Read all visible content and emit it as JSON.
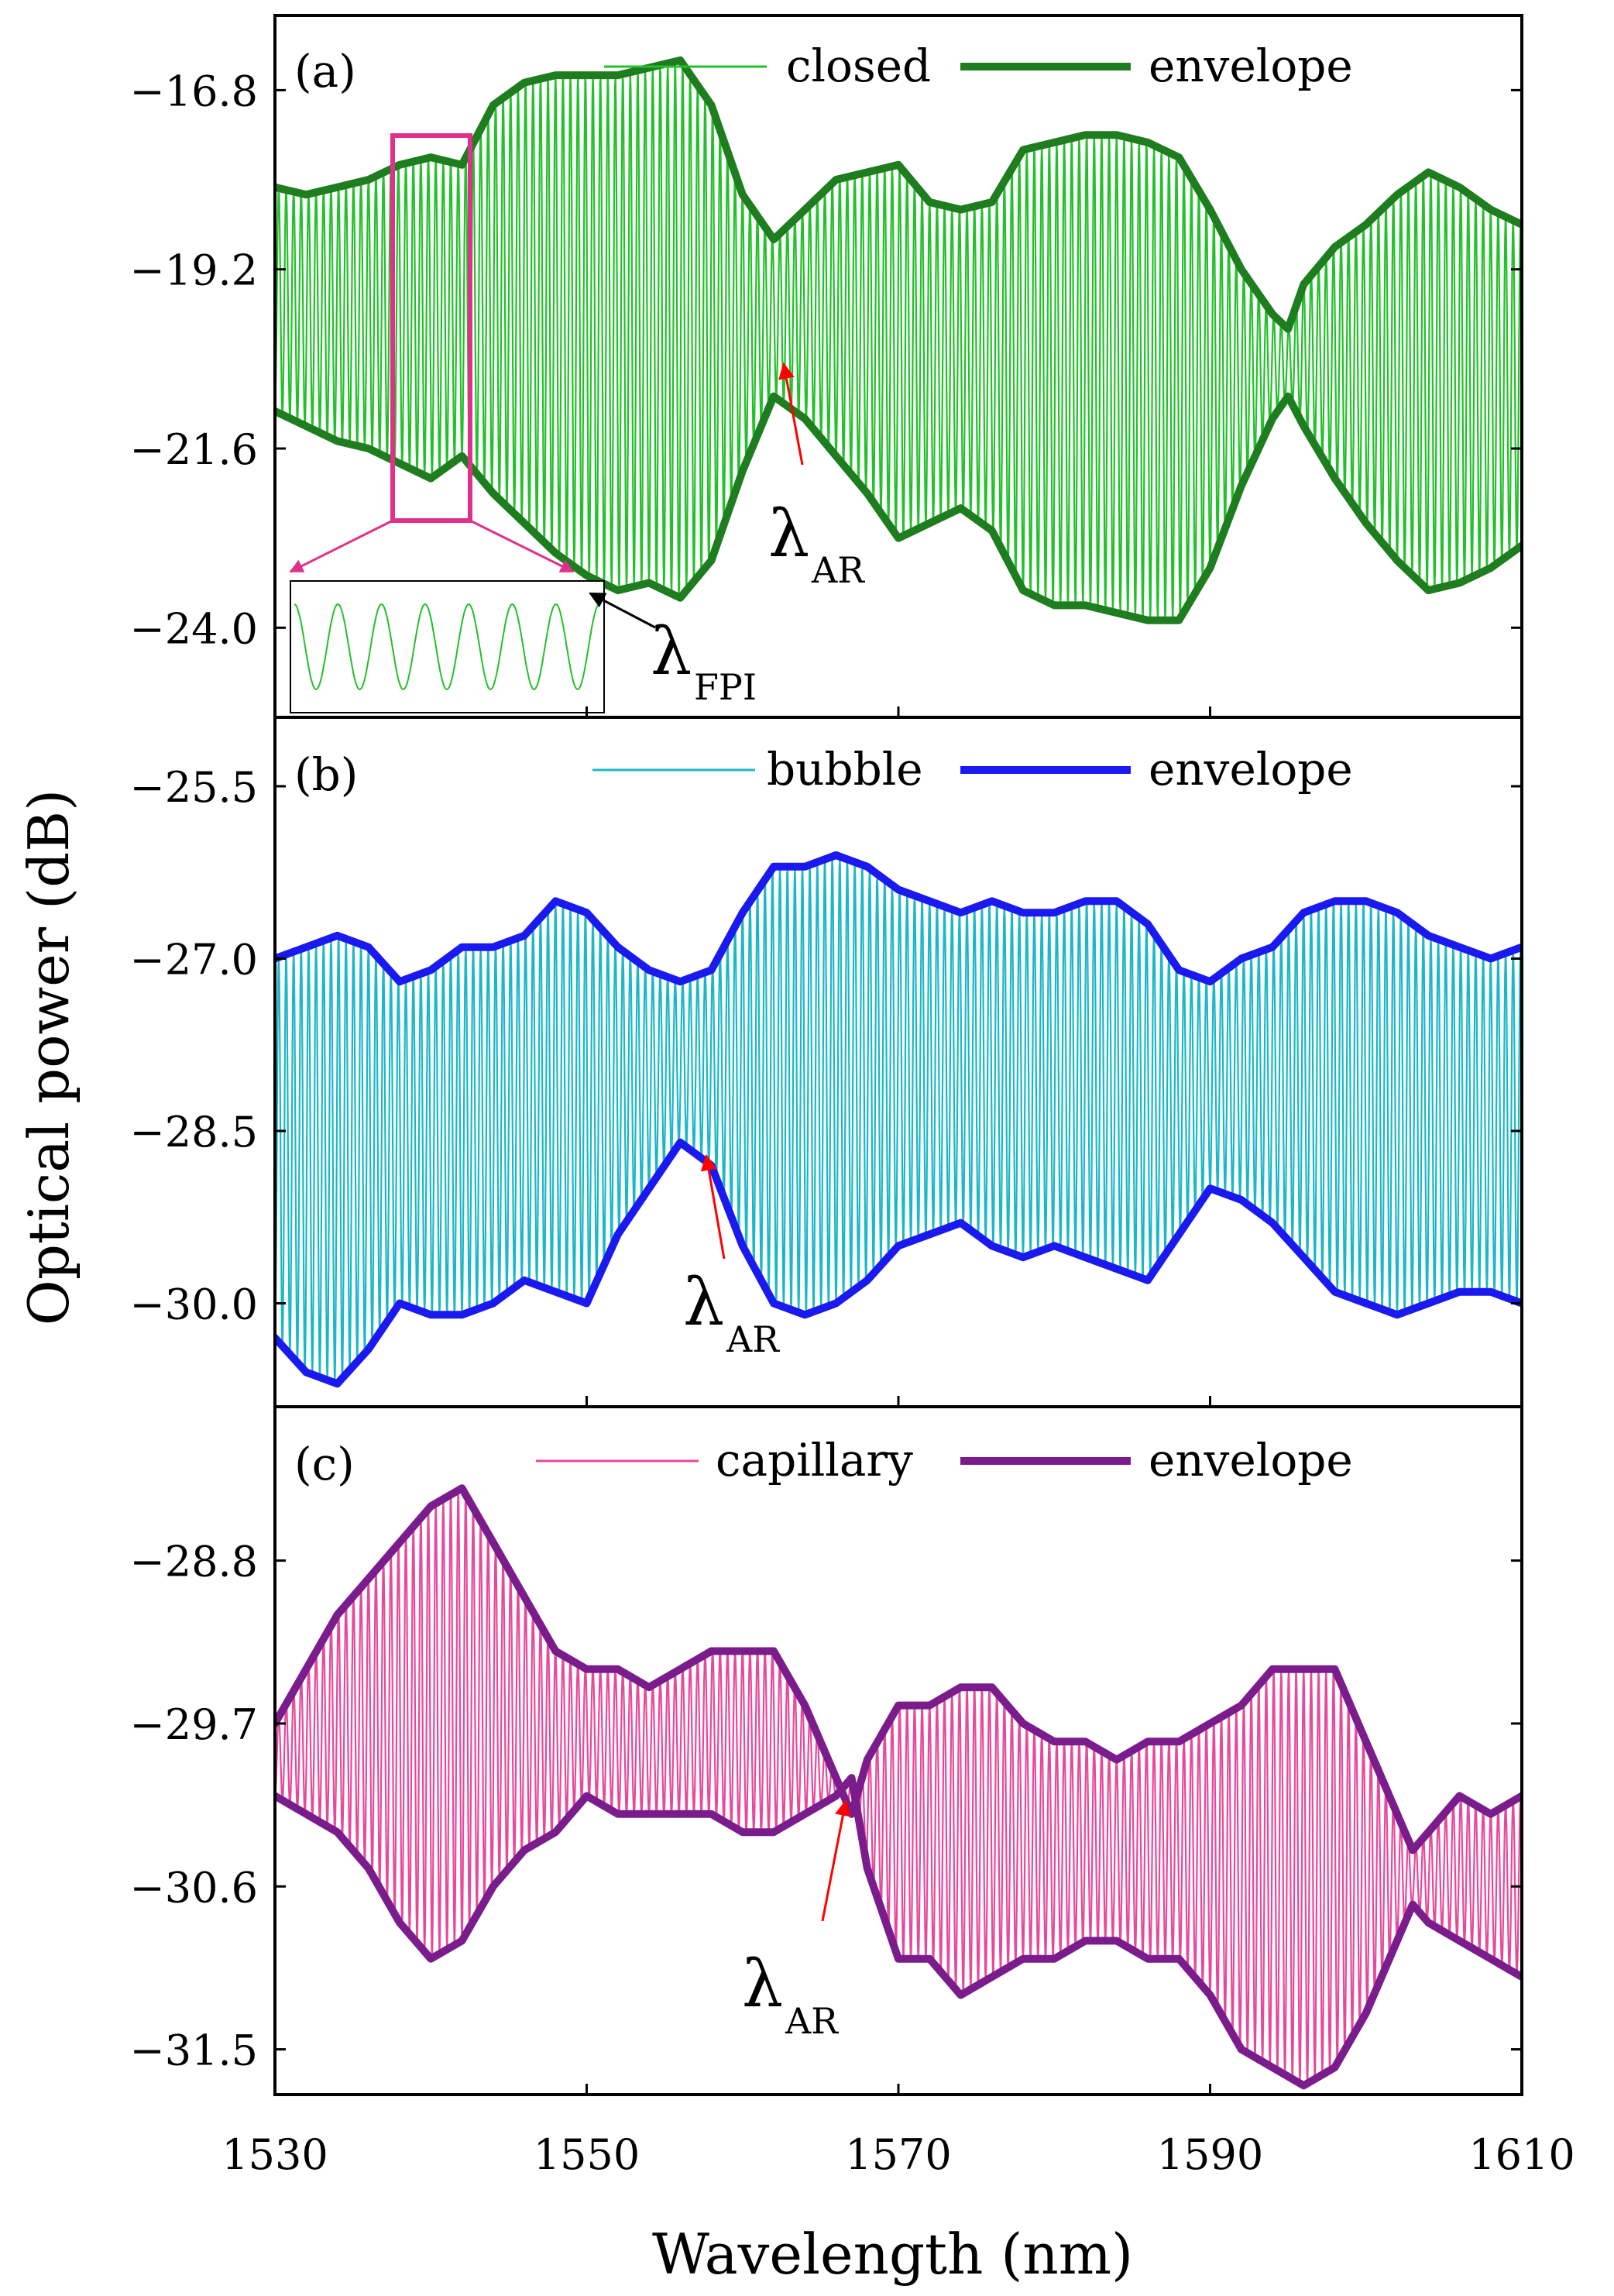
{
  "figure": {
    "ylabel": "Optical power (dB)",
    "xlabel": "Wavelength (nm)",
    "xlim": [
      1530,
      1610
    ],
    "xticks": [
      1530,
      1550,
      1570,
      1590,
      1610
    ],
    "xtick_labels": [
      "1530",
      "1550",
      "1570",
      "1590",
      "1610"
    ],
    "colors": {
      "axis": "#000000",
      "arrow": "#ff0000",
      "inset_box": "#e0308a",
      "inset_arrow": "#e0308a"
    }
  },
  "chart_data": [
    {
      "type": "line",
      "panel": "(a)",
      "ylim": [
        -25.2,
        -15.8
      ],
      "yticks": [
        -16.8,
        -19.2,
        -21.6,
        -24.0
      ],
      "ytick_labels": [
        "−16.8",
        "−19.2",
        "−21.6",
        "−24.0"
      ],
      "series": [
        {
          "name": "closed",
          "role": "signal",
          "color": "#22c02a"
        },
        {
          "name": "envelope",
          "role": "envelope",
          "color": "#1e7d1e",
          "upper": {
            "x": [
              1530,
              1532,
              1534,
              1536,
              1538,
              1540,
              1542,
              1544,
              1546,
              1548,
              1550,
              1552,
              1554,
              1556,
              1558,
              1560,
              1562,
              1564,
              1566,
              1568,
              1570,
              1572,
              1574,
              1576,
              1578,
              1580,
              1582,
              1584,
              1586,
              1588,
              1590,
              1592,
              1594,
              1595,
              1596,
              1598,
              1600,
              1602,
              1604,
              1606,
              1608,
              1610
            ],
            "y": [
              -18.1,
              -18.2,
              -18.1,
              -18.0,
              -17.8,
              -17.7,
              -17.8,
              -17.0,
              -16.7,
              -16.6,
              -16.6,
              -16.6,
              -16.5,
              -16.4,
              -17.0,
              -18.2,
              -18.8,
              -18.4,
              -18.0,
              -17.9,
              -17.8,
              -18.3,
              -18.4,
              -18.3,
              -17.6,
              -17.5,
              -17.4,
              -17.4,
              -17.5,
              -17.7,
              -18.4,
              -19.2,
              -19.8,
              -20.0,
              -19.4,
              -18.9,
              -18.6,
              -18.2,
              -17.9,
              -18.1,
              -18.4,
              -18.6
            ]
          },
          "lower": {
            "x": [
              1530,
              1532,
              1534,
              1536,
              1538,
              1540,
              1542,
              1544,
              1546,
              1548,
              1550,
              1552,
              1554,
              1556,
              1558,
              1560,
              1562,
              1564,
              1566,
              1568,
              1570,
              1572,
              1574,
              1576,
              1578,
              1580,
              1582,
              1584,
              1586,
              1588,
              1590,
              1592,
              1594,
              1595,
              1596,
              1598,
              1600,
              1602,
              1604,
              1606,
              1608,
              1610
            ],
            "y": [
              -21.1,
              -21.3,
              -21.5,
              -21.6,
              -21.8,
              -22.0,
              -21.7,
              -22.2,
              -22.6,
              -23.0,
              -23.3,
              -23.5,
              -23.4,
              -23.6,
              -23.1,
              -21.9,
              -20.9,
              -21.2,
              -21.7,
              -22.2,
              -22.8,
              -22.6,
              -22.4,
              -22.7,
              -23.5,
              -23.7,
              -23.7,
              -23.8,
              -23.9,
              -23.9,
              -23.2,
              -22.1,
              -21.2,
              -20.9,
              -21.3,
              -22.0,
              -22.6,
              -23.1,
              -23.5,
              -23.4,
              -23.2,
              -22.9
            ]
          }
        }
      ],
      "legend": {
        "placement": "top-center",
        "labels": [
          "closed",
          "envelope"
        ]
      },
      "annotations": [
        {
          "symbol": "λ",
          "subscript": "AR",
          "points_to": [
            1562.2,
            -20.9
          ]
        },
        {
          "symbol": "λ",
          "subscript": "FPI"
        }
      ],
      "inset": {
        "description_free": true,
        "zoom_x": [
          1538,
          1542
        ]
      }
    },
    {
      "type": "line",
      "panel": "(b)",
      "ylim": [
        -30.9,
        -24.9
      ],
      "yticks": [
        -25.5,
        -27.0,
        -28.5,
        -30.0
      ],
      "ytick_labels": [
        "−25.5",
        "−27.0",
        "−28.5",
        "−30.0"
      ],
      "series": [
        {
          "name": "bubble",
          "role": "signal",
          "color": "#1ab8c4"
        },
        {
          "name": "envelope",
          "role": "envelope",
          "color": "#1a1af0",
          "upper": {
            "x": [
              1530,
              1532,
              1534,
              1536,
              1538,
              1540,
              1542,
              1544,
              1546,
              1548,
              1550,
              1552,
              1554,
              1556,
              1558,
              1560,
              1562,
              1564,
              1566,
              1568,
              1570,
              1572,
              1574,
              1576,
              1578,
              1580,
              1582,
              1584,
              1586,
              1588,
              1590,
              1592,
              1594,
              1596,
              1598,
              1600,
              1602,
              1604,
              1606,
              1608,
              1610
            ],
            "y": [
              -27.0,
              -26.9,
              -26.8,
              -26.9,
              -27.2,
              -27.1,
              -26.9,
              -26.9,
              -26.8,
              -26.5,
              -26.6,
              -26.9,
              -27.1,
              -27.2,
              -27.1,
              -26.6,
              -26.2,
              -26.2,
              -26.1,
              -26.2,
              -26.4,
              -26.5,
              -26.6,
              -26.5,
              -26.6,
              -26.6,
              -26.5,
              -26.5,
              -26.7,
              -27.1,
              -27.2,
              -27.0,
              -26.9,
              -26.6,
              -26.5,
              -26.5,
              -26.6,
              -26.8,
              -26.9,
              -27.0,
              -26.9
            ]
          },
          "lower": {
            "x": [
              1530,
              1532,
              1534,
              1536,
              1538,
              1540,
              1542,
              1544,
              1546,
              1548,
              1550,
              1552,
              1554,
              1556,
              1558,
              1560,
              1562,
              1564,
              1566,
              1568,
              1570,
              1572,
              1574,
              1576,
              1578,
              1580,
              1582,
              1584,
              1586,
              1588,
              1590,
              1592,
              1594,
              1596,
              1598,
              1600,
              1602,
              1604,
              1606,
              1608,
              1610
            ],
            "y": [
              -30.3,
              -30.6,
              -30.7,
              -30.4,
              -30.0,
              -30.1,
              -30.1,
              -30.0,
              -29.8,
              -29.9,
              -30.0,
              -29.4,
              -29.0,
              -28.6,
              -28.8,
              -29.5,
              -30.0,
              -30.1,
              -30.0,
              -29.8,
              -29.5,
              -29.4,
              -29.3,
              -29.5,
              -29.6,
              -29.5,
              -29.6,
              -29.7,
              -29.8,
              -29.4,
              -29.0,
              -29.1,
              -29.3,
              -29.6,
              -29.9,
              -30.0,
              -30.1,
              -30.0,
              -29.9,
              -29.9,
              -30.0
            ]
          }
        }
      ],
      "legend": {
        "placement": "top-center",
        "labels": [
          "bubble",
          "envelope"
        ]
      },
      "annotations": [
        {
          "symbol": "λ",
          "subscript": "AR",
          "points_to": [
            1557.4,
            -28.6
          ]
        }
      ]
    },
    {
      "type": "line",
      "panel": "(c)",
      "ylim": [
        -31.75,
        -27.95
      ],
      "yticks": [
        -28.8,
        -29.7,
        -30.6,
        -31.5
      ],
      "ytick_labels": [
        "−28.8",
        "−29.7",
        "−30.6",
        "−31.5"
      ],
      "series": [
        {
          "name": "capillary",
          "role": "signal",
          "color": "#e8489c"
        },
        {
          "name": "envelope",
          "role": "envelope",
          "color": "#7b1c8c",
          "upper": {
            "x": [
              1530,
              1532,
              1534,
              1536,
              1538,
              1540,
              1542,
              1544,
              1546,
              1548,
              1550,
              1552,
              1554,
              1556,
              1558,
              1560,
              1562,
              1564,
              1566,
              1567,
              1568,
              1570,
              1572,
              1574,
              1576,
              1578,
              1580,
              1582,
              1584,
              1586,
              1588,
              1590,
              1592,
              1594,
              1596,
              1598,
              1600,
              1602,
              1603,
              1604,
              1606,
              1608,
              1610
            ],
            "y": [
              -29.7,
              -29.4,
              -29.1,
              -28.9,
              -28.7,
              -28.5,
              -28.4,
              -28.7,
              -29.0,
              -29.3,
              -29.4,
              -29.4,
              -29.5,
              -29.4,
              -29.3,
              -29.3,
              -29.3,
              -29.6,
              -30.0,
              -30.2,
              -29.9,
              -29.6,
              -29.6,
              -29.5,
              -29.5,
              -29.7,
              -29.8,
              -29.8,
              -29.9,
              -29.8,
              -29.8,
              -29.7,
              -29.6,
              -29.4,
              -29.4,
              -29.4,
              -29.8,
              -30.2,
              -30.4,
              -30.3,
              -30.1,
              -30.2,
              -30.1
            ]
          },
          "lower": {
            "x": [
              1530,
              1532,
              1534,
              1536,
              1538,
              1540,
              1542,
              1544,
              1546,
              1548,
              1550,
              1552,
              1554,
              1556,
              1558,
              1560,
              1562,
              1564,
              1566,
              1567,
              1568,
              1570,
              1572,
              1574,
              1576,
              1578,
              1580,
              1582,
              1584,
              1586,
              1588,
              1590,
              1592,
              1594,
              1596,
              1598,
              1600,
              1602,
              1603,
              1604,
              1606,
              1608,
              1610
            ],
            "y": [
              -30.1,
              -30.2,
              -30.3,
              -30.5,
              -30.8,
              -31.0,
              -30.9,
              -30.6,
              -30.4,
              -30.3,
              -30.1,
              -30.2,
              -30.2,
              -30.2,
              -30.2,
              -30.3,
              -30.3,
              -30.2,
              -30.1,
              -30.0,
              -30.5,
              -31.0,
              -31.0,
              -31.2,
              -31.1,
              -31.0,
              -31.0,
              -30.9,
              -30.9,
              -31.0,
              -31.0,
              -31.2,
              -31.5,
              -31.6,
              -31.7,
              -31.6,
              -31.3,
              -30.9,
              -30.7,
              -30.8,
              -30.9,
              -31.0,
              -31.1
            ]
          }
        }
      ],
      "legend": {
        "placement": "top-center",
        "labels": [
          "capillary",
          "envelope"
        ]
      },
      "annotations": [
        {
          "symbol": "λ",
          "subscript": "AR",
          "points_to": [
            1566.8,
            -30.1
          ]
        }
      ]
    }
  ]
}
